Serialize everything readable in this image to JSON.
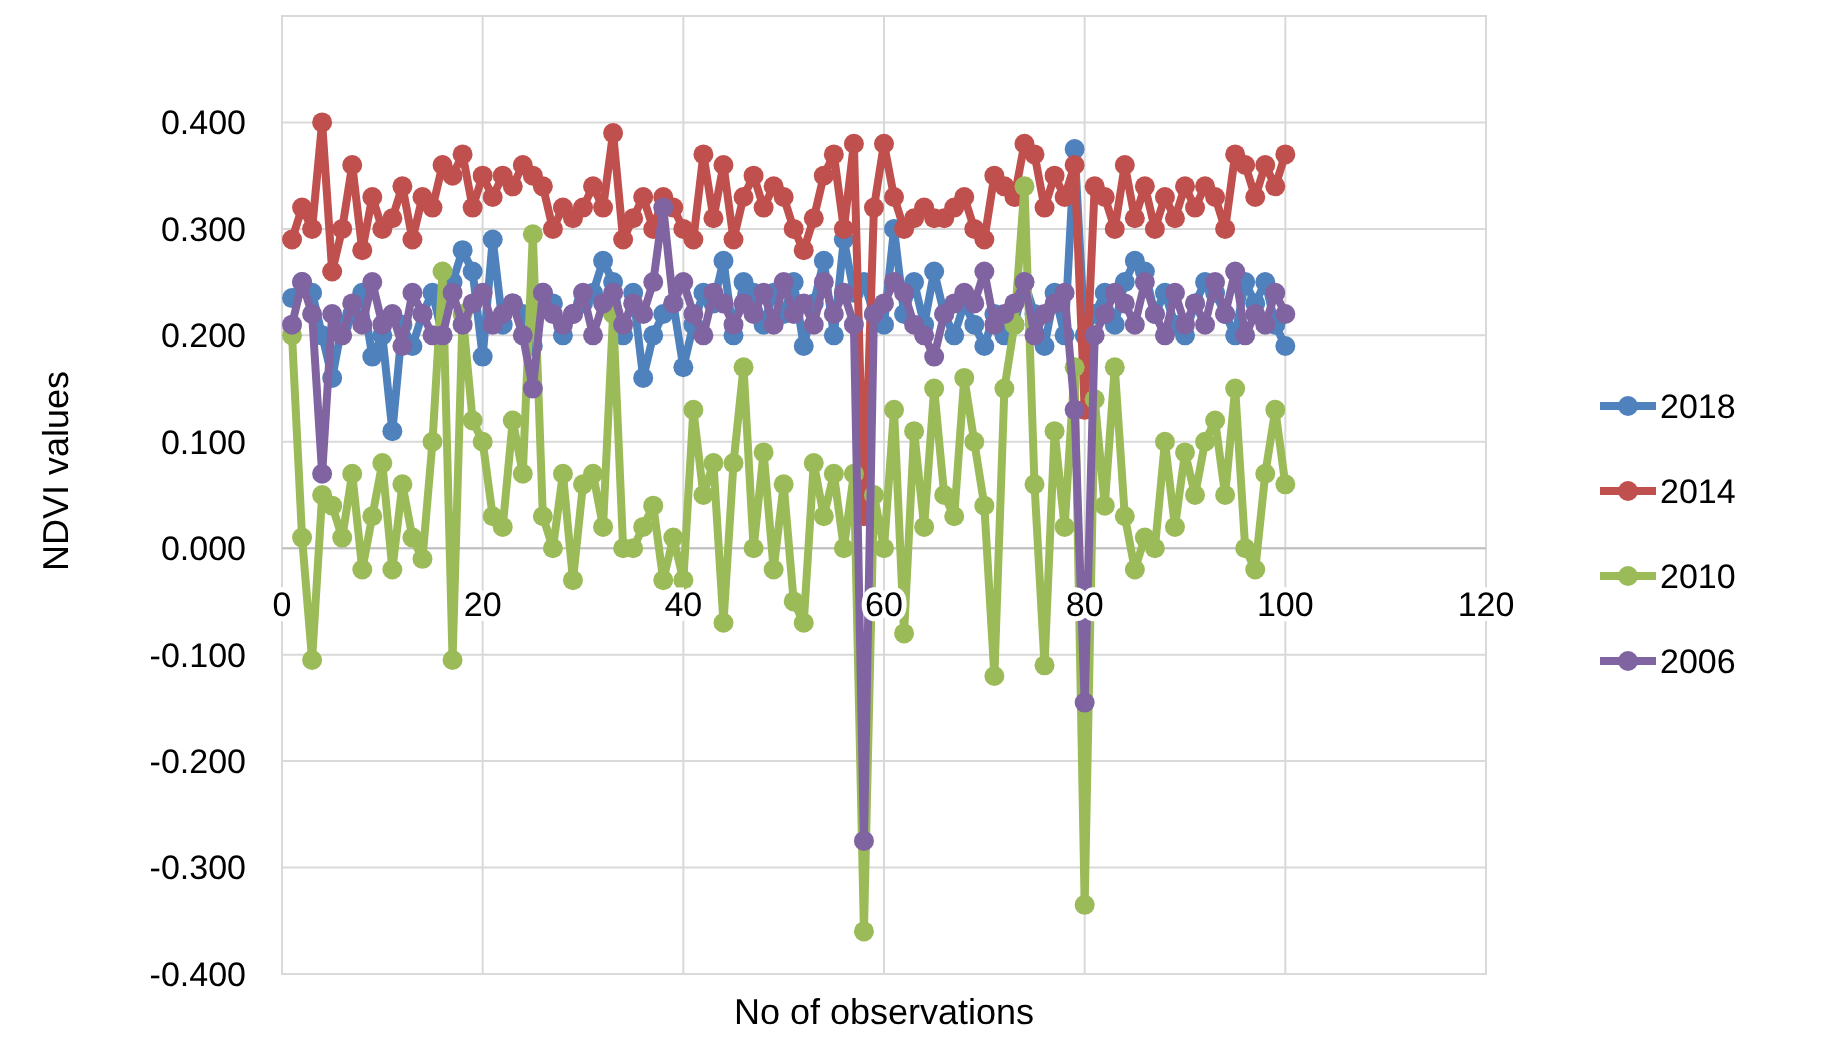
{
  "chart_data": {
    "type": "line",
    "xlabel": "No of observations",
    "ylabel": "NDVI values",
    "x": [
      1,
      2,
      3,
      4,
      5,
      6,
      7,
      8,
      9,
      10,
      11,
      12,
      13,
      14,
      15,
      16,
      17,
      18,
      19,
      20,
      21,
      22,
      23,
      24,
      25,
      26,
      27,
      28,
      29,
      30,
      31,
      32,
      33,
      34,
      35,
      36,
      37,
      38,
      39,
      40,
      41,
      42,
      43,
      44,
      45,
      46,
      47,
      48,
      49,
      50,
      51,
      52,
      53,
      54,
      55,
      56,
      57,
      58,
      59,
      60,
      61,
      62,
      63,
      64,
      65,
      66,
      67,
      68,
      69,
      70,
      71,
      72,
      73,
      74,
      75,
      76,
      77,
      78,
      79,
      80,
      81,
      82,
      83,
      84,
      85,
      86,
      87,
      88,
      89,
      90,
      91,
      92,
      93,
      94,
      95,
      96,
      97,
      98,
      99,
      100
    ],
    "xlim": [
      0,
      120
    ],
    "xticks": [
      0,
      20,
      40,
      60,
      80,
      100,
      120
    ],
    "ylim": [
      -0.4,
      0.5
    ],
    "yticks": [
      {
        "value": -0.4,
        "label": "-0.400"
      },
      {
        "value": -0.3,
        "label": "-0.300"
      },
      {
        "value": -0.2,
        "label": "-0.200"
      },
      {
        "value": -0.1,
        "label": "-0.100"
      },
      {
        "value": 0,
        "label": "0.000"
      },
      {
        "value": 0.1,
        "label": "0.100"
      },
      {
        "value": 0.2,
        "label": "0.200"
      },
      {
        "value": 0.3,
        "label": "0.300"
      },
      {
        "value": 0.4,
        "label": "0.400"
      },
      {
        "value": 0.5,
        "label": null
      }
    ],
    "grid": true,
    "legend": "right",
    "marker": "circle",
    "line_style": "solid",
    "series": [
      {
        "name": "2018",
        "color": "#4f81bd",
        "values": [
          0.235,
          0.25,
          0.24,
          0.2,
          0.16,
          0.21,
          0.22,
          0.24,
          0.18,
          0.2,
          0.11,
          0.21,
          0.19,
          0.22,
          0.24,
          0.2,
          0.25,
          0.28,
          0.26,
          0.18,
          0.29,
          0.21,
          0.23,
          0.22,
          0.19,
          0.24,
          0.23,
          0.2,
          0.22,
          0.23,
          0.24,
          0.27,
          0.25,
          0.2,
          0.24,
          0.16,
          0.2,
          0.22,
          0.23,
          0.17,
          0.21,
          0.24,
          0.23,
          0.27,
          0.2,
          0.25,
          0.24,
          0.21,
          0.24,
          0.22,
          0.25,
          0.19,
          0.23,
          0.27,
          0.2,
          0.29,
          0.24,
          0.25,
          0.22,
          0.21,
          0.3,
          0.22,
          0.25,
          0.21,
          0.26,
          0.22,
          0.2,
          0.23,
          0.21,
          0.19,
          0.22,
          0.2,
          0.21,
          0.25,
          0.22,
          0.19,
          0.24,
          0.2,
          0.375,
          0.2,
          0.22,
          0.24,
          0.21,
          0.25,
          0.27,
          0.26,
          0.22,
          0.24,
          0.21,
          0.2,
          0.23,
          0.25,
          0.24,
          0.22,
          0.2,
          0.25,
          0.23,
          0.25,
          0.21,
          0.19
        ]
      },
      {
        "name": "2014",
        "color": "#c0504d",
        "values": [
          0.29,
          0.32,
          0.3,
          0.4,
          0.26,
          0.3,
          0.36,
          0.28,
          0.33,
          0.3,
          0.31,
          0.34,
          0.29,
          0.33,
          0.32,
          0.36,
          0.35,
          0.37,
          0.32,
          0.35,
          0.33,
          0.35,
          0.34,
          0.36,
          0.35,
          0.34,
          0.3,
          0.32,
          0.31,
          0.32,
          0.34,
          0.32,
          0.39,
          0.29,
          0.31,
          0.33,
          0.3,
          0.33,
          0.32,
          0.3,
          0.29,
          0.37,
          0.31,
          0.36,
          0.29,
          0.33,
          0.35,
          0.32,
          0.34,
          0.33,
          0.3,
          0.28,
          0.31,
          0.35,
          0.37,
          0.3,
          0.38,
          0.03,
          0.32,
          0.38,
          0.33,
          0.3,
          0.31,
          0.32,
          0.31,
          0.31,
          0.32,
          0.33,
          0.3,
          0.29,
          0.35,
          0.34,
          0.33,
          0.38,
          0.37,
          0.32,
          0.35,
          0.33,
          0.36,
          0.13,
          0.34,
          0.33,
          0.3,
          0.36,
          0.31,
          0.34,
          0.3,
          0.33,
          0.31,
          0.34,
          0.32,
          0.34,
          0.33,
          0.3,
          0.37,
          0.36,
          0.33,
          0.36,
          0.34,
          0.37
        ]
      },
      {
        "name": "2010",
        "color": "#9bbb59",
        "values": [
          0.2,
          0.01,
          -0.105,
          0.05,
          0.04,
          0.01,
          0.07,
          -0.02,
          0.03,
          0.08,
          -0.02,
          0.06,
          0.01,
          -0.01,
          0.1,
          0.26,
          -0.105,
          0.22,
          0.12,
          0.1,
          0.03,
          0.02,
          0.12,
          0.07,
          0.295,
          0.03,
          0.0,
          0.07,
          -0.03,
          0.06,
          0.07,
          0.02,
          0.22,
          0.0,
          0.0,
          0.02,
          0.04,
          -0.03,
          0.01,
          -0.03,
          0.13,
          0.05,
          0.08,
          -0.07,
          0.08,
          0.17,
          0.0,
          0.09,
          -0.02,
          0.06,
          -0.05,
          -0.07,
          0.08,
          0.03,
          0.07,
          0.0,
          0.07,
          -0.36,
          0.05,
          0.0,
          0.13,
          -0.08,
          0.11,
          0.02,
          0.15,
          0.05,
          0.03,
          0.16,
          0.1,
          0.04,
          -0.12,
          0.15,
          0.21,
          0.34,
          0.06,
          -0.11,
          0.11,
          0.02,
          0.17,
          -0.335,
          0.14,
          0.04,
          0.17,
          0.03,
          -0.02,
          0.01,
          0.0,
          0.1,
          0.02,
          0.09,
          0.05,
          0.1,
          0.12,
          0.05,
          0.15,
          0.0,
          -0.02,
          0.07,
          0.13,
          0.06
        ]
      },
      {
        "name": "2006",
        "color": "#8064a2",
        "values": [
          0.21,
          0.25,
          0.22,
          0.07,
          0.22,
          0.2,
          0.23,
          0.21,
          0.25,
          0.21,
          0.22,
          0.19,
          0.24,
          0.22,
          0.2,
          0.2,
          0.24,
          0.21,
          0.23,
          0.24,
          0.21,
          0.22,
          0.23,
          0.2,
          0.15,
          0.24,
          0.22,
          0.21,
          0.22,
          0.24,
          0.2,
          0.23,
          0.24,
          0.21,
          0.23,
          0.22,
          0.25,
          0.32,
          0.23,
          0.25,
          0.22,
          0.2,
          0.24,
          0.23,
          0.21,
          0.23,
          0.22,
          0.24,
          0.21,
          0.25,
          0.22,
          0.23,
          0.21,
          0.25,
          0.22,
          0.24,
          0.21,
          -0.275,
          0.22,
          0.23,
          0.25,
          0.24,
          0.21,
          0.2,
          0.18,
          0.22,
          0.23,
          0.24,
          0.23,
          0.26,
          0.21,
          0.22,
          0.23,
          0.25,
          0.2,
          0.22,
          0.23,
          0.24,
          0.13,
          -0.145,
          0.2,
          0.22,
          0.24,
          0.23,
          0.21,
          0.25,
          0.22,
          0.2,
          0.24,
          0.21,
          0.23,
          0.21,
          0.25,
          0.22,
          0.26,
          0.2,
          0.22,
          0.21,
          0.24,
          0.22
        ]
      }
    ]
  }
}
